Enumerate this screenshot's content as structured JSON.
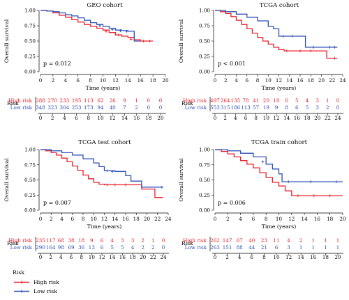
{
  "colors": {
    "high": "#e8202a",
    "low": "#2c4fb4"
  },
  "legend": {
    "title": "Risk",
    "items": [
      {
        "label": "High risk",
        "color": "#e8202a"
      },
      {
        "label": "Low risk",
        "color": "#2c4fb4"
      }
    ]
  },
  "chart_data": [
    {
      "type": "line",
      "subtype": "kaplan-meier",
      "title": "GEO cohort",
      "xlabel": "Time (years)",
      "ylabel": "Overall survival",
      "xlim": [
        0,
        20
      ],
      "ylim": [
        0,
        1
      ],
      "xticks": [
        "0",
        "2",
        "4",
        "6",
        "8",
        "10",
        "12",
        "14",
        "16",
        "18",
        "20"
      ],
      "yticks": [
        "0.00",
        "0.25",
        "0.50",
        "0.75",
        "1.00"
      ],
      "pvalue": "p = 0.012",
      "series": [
        {
          "name": "High risk",
          "color": "#e8202a",
          "points": [
            [
              0,
              1.0
            ],
            [
              1,
              0.99
            ],
            [
              2,
              0.96
            ],
            [
              3,
              0.92
            ],
            [
              4,
              0.89
            ],
            [
              5,
              0.85
            ],
            [
              6,
              0.81
            ],
            [
              7,
              0.77
            ],
            [
              8,
              0.74
            ],
            [
              9,
              0.71
            ],
            [
              10,
              0.68
            ],
            [
              11,
              0.64
            ],
            [
              12,
              0.6
            ],
            [
              13,
              0.58
            ],
            [
              14,
              0.56
            ],
            [
              15,
              0.52
            ],
            [
              16,
              0.5
            ],
            [
              18,
              0.5
            ]
          ],
          "censor": [
            [
              10.5,
              0.66
            ],
            [
              12.5,
              0.6
            ],
            [
              14.5,
              0.53
            ],
            [
              16.5,
              0.5
            ],
            [
              17.5,
              0.5
            ]
          ]
        },
        {
          "name": "Low risk",
          "color": "#2c4fb4",
          "points": [
            [
              0,
              1.0
            ],
            [
              1,
              0.99
            ],
            [
              2,
              0.98
            ],
            [
              3,
              0.96
            ],
            [
              4,
              0.93
            ],
            [
              5,
              0.91
            ],
            [
              6,
              0.88
            ],
            [
              7,
              0.84
            ],
            [
              8,
              0.8
            ],
            [
              9,
              0.77
            ],
            [
              10,
              0.74
            ],
            [
              11,
              0.71
            ],
            [
              12,
              0.68
            ],
            [
              13,
              0.67
            ],
            [
              14,
              0.66
            ],
            [
              15,
              0.5
            ],
            [
              16,
              0.5
            ]
          ],
          "censor": [
            [
              9.5,
              0.75
            ],
            [
              11.5,
              0.69
            ],
            [
              12.8,
              0.67
            ],
            [
              13.8,
              0.66
            ]
          ]
        }
      ],
      "risk_table": {
        "header": "Risk",
        "xticks": [
          "0",
          "2",
          "4",
          "6",
          "8",
          "10",
          "12",
          "14",
          "16",
          "18",
          "20"
        ],
        "rows": [
          {
            "label": "High risk",
            "values": [
              "288",
              "270",
              "233",
              "195",
              "113",
              "62",
              "26",
              "9",
              "1",
              "0",
              "0"
            ]
          },
          {
            "label": "Low risk",
            "values": [
              "348",
              "323",
              "304",
              "253",
              "173",
              "94",
              "40",
              "7",
              "2",
              "0",
              "0"
            ]
          }
        ]
      }
    },
    {
      "type": "line",
      "subtype": "kaplan-meier",
      "title": "TCGA cohort",
      "xlabel": "Time (years)",
      "ylabel": "Overall survival",
      "xlim": [
        0,
        24
      ],
      "ylim": [
        0,
        1
      ],
      "xticks": [
        "0",
        "2",
        "4",
        "6",
        "8",
        "10",
        "12",
        "14",
        "16",
        "18",
        "20",
        "22",
        "24"
      ],
      "yticks": [
        "0.00",
        "0.25",
        "0.50",
        "0.75",
        "1.00"
      ],
      "pvalue": "p < 0.001",
      "series": [
        {
          "name": "High risk",
          "color": "#e8202a",
          "points": [
            [
              0,
              1.0
            ],
            [
              1,
              0.98
            ],
            [
              2,
              0.95
            ],
            [
              3,
              0.9
            ],
            [
              4,
              0.84
            ],
            [
              5,
              0.77
            ],
            [
              6,
              0.7
            ],
            [
              7,
              0.63
            ],
            [
              8,
              0.56
            ],
            [
              9,
              0.5
            ],
            [
              10,
              0.45
            ],
            [
              11,
              0.4
            ],
            [
              12,
              0.36
            ],
            [
              13,
              0.34
            ],
            [
              20,
              0.34
            ],
            [
              21,
              0.22
            ],
            [
              23,
              0.22
            ]
          ],
          "censor": [
            [
              13.5,
              0.34
            ],
            [
              16,
              0.34
            ],
            [
              18,
              0.34
            ],
            [
              22.5,
              0.22
            ]
          ]
        },
        {
          "name": "Low risk",
          "color": "#2c4fb4",
          "points": [
            [
              0,
              1.0
            ],
            [
              2,
              0.98
            ],
            [
              4,
              0.94
            ],
            [
              6,
              0.89
            ],
            [
              8,
              0.83
            ],
            [
              10,
              0.74
            ],
            [
              11,
              0.7
            ],
            [
              12,
              0.58
            ],
            [
              16,
              0.58
            ],
            [
              17,
              0.4
            ],
            [
              23,
              0.4
            ]
          ],
          "censor": [
            [
              12.8,
              0.58
            ],
            [
              14.5,
              0.58
            ],
            [
              18.5,
              0.4
            ],
            [
              21.5,
              0.4
            ],
            [
              22.5,
              0.4
            ]
          ]
        }
      ],
      "risk_table": {
        "header": "Risk",
        "xticks": [
          "0",
          "2",
          "4",
          "6",
          "8",
          "10",
          "12",
          "14",
          "16",
          "18",
          "20",
          "22",
          "24"
        ],
        "rows": [
          {
            "label": "High risk",
            "values": [
              "497",
              "264",
              "135",
              "78",
              "41",
              "20",
              "10",
              "6",
              "5",
              "4",
              "3",
              "1",
              "0"
            ]
          },
          {
            "label": "Low risk",
            "values": [
              "553",
              "315",
              "186",
              "113",
              "57",
              "19",
              "9",
              "8",
              "6",
              "5",
              "3",
              "2",
              "0"
            ]
          }
        ]
      }
    },
    {
      "type": "line",
      "subtype": "kaplan-meier",
      "title": "TCGA test cohort",
      "xlabel": "Time (years)",
      "ylabel": "Overall survival",
      "xlim": [
        0,
        24
      ],
      "ylim": [
        0,
        1
      ],
      "xticks": [
        "0",
        "2",
        "4",
        "6",
        "8",
        "10",
        "12",
        "14",
        "16",
        "18",
        "20",
        "22",
        "24"
      ],
      "yticks": [
        "0.00",
        "0.25",
        "0.50",
        "0.75",
        "1.00"
      ],
      "pvalue": "p = 0.007",
      "series": [
        {
          "name": "High risk",
          "color": "#e8202a",
          "points": [
            [
              0,
              1.0
            ],
            [
              1,
              0.98
            ],
            [
              2,
              0.95
            ],
            [
              3,
              0.91
            ],
            [
              4,
              0.86
            ],
            [
              5,
              0.8
            ],
            [
              6,
              0.73
            ],
            [
              7,
              0.66
            ],
            [
              8,
              0.58
            ],
            [
              9,
              0.52
            ],
            [
              10,
              0.46
            ],
            [
              11,
              0.43
            ],
            [
              12,
              0.42
            ],
            [
              18,
              0.42
            ],
            [
              19,
              0.35
            ],
            [
              21,
              0.35
            ],
            [
              21.5,
              0.21
            ],
            [
              23,
              0.21
            ]
          ],
          "censor": [
            [
              12.5,
              0.42
            ],
            [
              14,
              0.42
            ],
            [
              16,
              0.42
            ]
          ]
        },
        {
          "name": "Low risk",
          "color": "#2c4fb4",
          "points": [
            [
              0,
              1.0
            ],
            [
              2,
              0.98
            ],
            [
              4,
              0.95
            ],
            [
              6,
              0.91
            ],
            [
              8,
              0.85
            ],
            [
              10,
              0.78
            ],
            [
              11,
              0.72
            ],
            [
              12,
              0.65
            ],
            [
              14,
              0.64
            ],
            [
              16,
              0.57
            ],
            [
              17,
              0.48
            ],
            [
              18,
              0.48
            ],
            [
              19,
              0.38
            ],
            [
              23,
              0.38
            ]
          ],
          "censor": [
            [
              12.5,
              0.65
            ],
            [
              13.5,
              0.64
            ],
            [
              22.8,
              0.38
            ]
          ]
        }
      ],
      "risk_table": {
        "header": "Risk",
        "xticks": [
          "0",
          "2",
          "4",
          "6",
          "8",
          "10",
          "12",
          "14",
          "16",
          "18",
          "20",
          "22",
          "24"
        ],
        "rows": [
          {
            "label": "High risk",
            "values": [
              "235",
              "117",
              "68",
              "38",
              "18",
              "9",
              "6",
              "4",
              "3",
              "3",
              "2",
              "1",
              "0"
            ]
          },
          {
            "label": "Low risk",
            "values": [
              "290",
              "164",
              "98",
              "69",
              "36",
              "13",
              "6",
              "5",
              "5",
              "4",
              "2",
              "2",
              "0"
            ]
          }
        ]
      }
    },
    {
      "type": "line",
      "subtype": "kaplan-meier",
      "title": "TCGA train cohort",
      "xlabel": "Time (years)",
      "ylabel": "Overall survival",
      "xlim": [
        0,
        20
      ],
      "ylim": [
        0,
        1
      ],
      "xticks": [
        "0",
        "2",
        "4",
        "6",
        "8",
        "10",
        "12",
        "14",
        "16",
        "18",
        "20"
      ],
      "yticks": [
        "0.00",
        "0.25",
        "0.50",
        "0.75",
        "1.00"
      ],
      "pvalue": "p = 0.006",
      "series": [
        {
          "name": "High risk",
          "color": "#e8202a",
          "points": [
            [
              0,
              1.0
            ],
            [
              1,
              0.97
            ],
            [
              2,
              0.93
            ],
            [
              3,
              0.88
            ],
            [
              4,
              0.82
            ],
            [
              5,
              0.76
            ],
            [
              6,
              0.7
            ],
            [
              7,
              0.62
            ],
            [
              8,
              0.54
            ],
            [
              9,
              0.46
            ],
            [
              10,
              0.4
            ],
            [
              11,
              0.32
            ],
            [
              12,
              0.24
            ],
            [
              20,
              0.24
            ]
          ],
          "censor": [
            [
              13,
              0.24
            ],
            [
              15.5,
              0.24
            ],
            [
              18,
              0.24
            ]
          ]
        },
        {
          "name": "Low risk",
          "color": "#2c4fb4",
          "points": [
            [
              0,
              1.0
            ],
            [
              2,
              0.98
            ],
            [
              4,
              0.94
            ],
            [
              6,
              0.88
            ],
            [
              8,
              0.76
            ],
            [
              9,
              0.68
            ],
            [
              10,
              0.6
            ],
            [
              10.5,
              0.47
            ],
            [
              20,
              0.47
            ]
          ],
          "censor": [
            [
              7.5,
              0.8
            ],
            [
              11.5,
              0.47
            ],
            [
              15,
              0.47
            ],
            [
              19,
              0.47
            ]
          ]
        }
      ],
      "risk_table": {
        "header": "Risk",
        "xticks": [
          "0",
          "2",
          "4",
          "6",
          "8",
          "10",
          "12",
          "14",
          "16",
          "18",
          "20"
        ],
        "rows": [
          {
            "label": "High risk",
            "values": [
              "262",
              "147",
              "67",
              "40",
              "23",
              "11",
              "4",
              "2",
              "1",
              "1",
              "1"
            ]
          },
          {
            "label": "Low risk",
            "values": [
              "263",
              "151",
              "88",
              "44",
              "21",
              "6",
              "3",
              "1",
              "1",
              "1",
              "1"
            ]
          }
        ]
      }
    }
  ]
}
